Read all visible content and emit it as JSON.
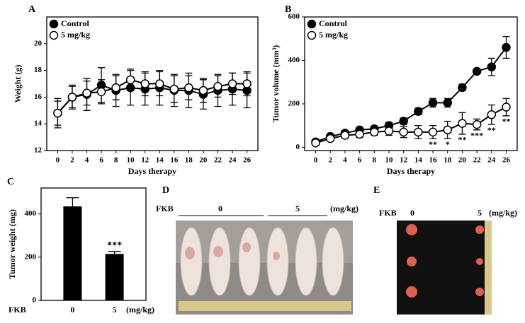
{
  "chart_data": [
    {
      "type": "line",
      "label": "A",
      "xlabel": "Days therapy",
      "ylabel": "Weight (g)",
      "x": [
        0,
        2,
        4,
        6,
        8,
        10,
        12,
        14,
        16,
        18,
        20,
        22,
        24,
        26
      ],
      "series": [
        {
          "name": "Control",
          "color": "#000000",
          "marker": "filled",
          "values": [
            14.8,
            16.0,
            16.2,
            16.9,
            16.5,
            16.7,
            16.6,
            16.7,
            16.5,
            16.5,
            16.2,
            16.5,
            16.6,
            16.5
          ],
          "errors": [
            1.1,
            0.9,
            1.2,
            1.3,
            1.2,
            1.3,
            1.2,
            1.3,
            1.2,
            1.3,
            1.1,
            1.2,
            1.2,
            1.3
          ]
        },
        {
          "name": "5 mg/kg",
          "color": "#000000",
          "marker": "open",
          "values": [
            14.8,
            16.0,
            16.3,
            16.4,
            16.7,
            17.3,
            17.0,
            17.0,
            16.6,
            16.7,
            16.5,
            16.8,
            17.0,
            17.0
          ],
          "errors": [
            0.9,
            0.8,
            0.9,
            0.9,
            0.9,
            0.8,
            0.9,
            0.9,
            1.0,
            0.9,
            0.9,
            0.8,
            0.8,
            0.9
          ]
        }
      ],
      "xlim": [
        -1.5,
        27.5
      ],
      "xticks": [
        0,
        2,
        4,
        6,
        8,
        10,
        12,
        14,
        16,
        18,
        20,
        22,
        24,
        26
      ],
      "ylim": [
        12,
        22
      ],
      "yticks": [
        12,
        14,
        16,
        18,
        20
      ],
      "legend": "upper left"
    },
    {
      "type": "line",
      "label": "B",
      "xlabel": "Days therapy",
      "ylabel": "Tumor volume (mm³)",
      "x": [
        0,
        2,
        4,
        6,
        8,
        10,
        12,
        14,
        16,
        18,
        20,
        22,
        24,
        26
      ],
      "series": [
        {
          "name": "Control",
          "color": "#000000",
          "marker": "filled",
          "values": [
            25,
            50,
            65,
            80,
            85,
            100,
            120,
            165,
            205,
            205,
            275,
            350,
            370,
            460
          ],
          "errors": [
            10,
            10,
            12,
            12,
            12,
            15,
            15,
            15,
            20,
            20,
            15,
            10,
            40,
            50
          ]
        },
        {
          "name": "5 mg/kg",
          "color": "#000000",
          "marker": "open",
          "values": [
            20,
            40,
            55,
            60,
            70,
            75,
            70,
            70,
            70,
            80,
            110,
            105,
            150,
            185
          ],
          "errors": [
            10,
            10,
            12,
            15,
            15,
            20,
            25,
            30,
            30,
            40,
            50,
            25,
            45,
            40
          ]
        }
      ],
      "annotations": [
        {
          "x": 16,
          "text": "**"
        },
        {
          "x": 18,
          "text": "*"
        },
        {
          "x": 20,
          "text": "**"
        },
        {
          "x": 22,
          "text": "***"
        },
        {
          "x": 24,
          "text": "**"
        },
        {
          "x": 26,
          "text": "**"
        }
      ],
      "xlim": [
        -1.5,
        27.5
      ],
      "xticks": [
        0,
        2,
        4,
        6,
        8,
        10,
        12,
        14,
        16,
        18,
        20,
        22,
        24,
        26
      ],
      "ylim": [
        -15,
        600
      ],
      "yticks": [
        0,
        200,
        400,
        600
      ],
      "legend": "upper left"
    },
    {
      "type": "bar",
      "label": "C",
      "ylabel": "Tumor weight (mg)",
      "group_label": "FKB",
      "unit_label": "(mg/kg)",
      "categories": [
        "0",
        "5"
      ],
      "values": [
        435,
        215
      ],
      "errors": [
        40,
        12
      ],
      "color": "#000000",
      "annotations": [
        {
          "category": 1,
          "text": "***"
        }
      ],
      "ylim": [
        0,
        520
      ],
      "yticks": [
        0,
        200,
        400
      ]
    }
  ],
  "photos": {
    "D": {
      "label": "D",
      "group_label": "FKB",
      "doses": [
        "0",
        "5"
      ],
      "unit_label": "(mg/kg)"
    },
    "E": {
      "label": "E",
      "group_label": "FKB",
      "doses": [
        "0",
        "5"
      ],
      "unit_label": "(mg/kg)"
    }
  }
}
